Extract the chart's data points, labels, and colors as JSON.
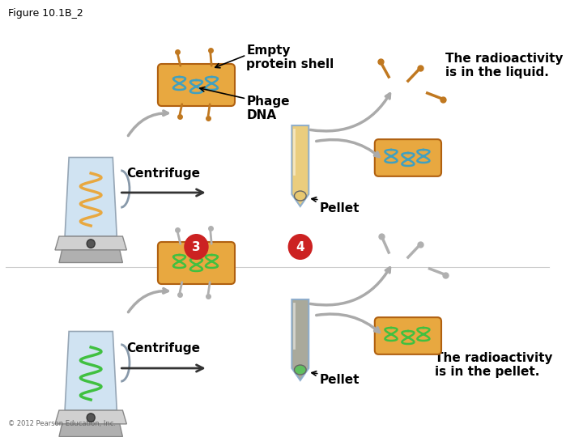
{
  "title": "Figure 10.1B_2",
  "background_color": "#ffffff",
  "labels": {
    "empty_protein_shell": "Empty\nprotein shell",
    "phage_dna": "Phage\nDNA",
    "centrifuge1": "Centrifuge",
    "centrifuge2": "Centrifuge",
    "pellet1": "Pellet",
    "pellet2": "Pellet",
    "radioactivity_liquid": "The radioactivity\nis in the liquid.",
    "radioactivity_pellet": "The radioactivity\nis in the pellet.",
    "step3": "3",
    "step4": "4",
    "copyright": "© 2012 Pearson Education, Inc."
  },
  "colors": {
    "background_color": "#ffffff",
    "blender_body": "#c8dff0",
    "blender_base": "#d0d0d0",
    "phage_body": "#e8a840",
    "phage_body2": "#e8a840",
    "dna_color": "#40a0c0",
    "spring_color1": "#e8a840",
    "spring_color2": "#40c040",
    "tube_color": "#c8dff0",
    "tube_liquid1": "#e8c870",
    "tube_liquid2": "#a0a090",
    "pellet1_color": "#e8c870",
    "pellet2_color": "#60c060",
    "step_circle": "#cc2222",
    "step_text": "#ffffff",
    "arrow_color": "#333333",
    "label_color": "#000000",
    "title_color": "#000000"
  },
  "fontsize": {
    "title": 9,
    "label": 10,
    "small": 8,
    "step": 11,
    "bold_label": 11
  }
}
